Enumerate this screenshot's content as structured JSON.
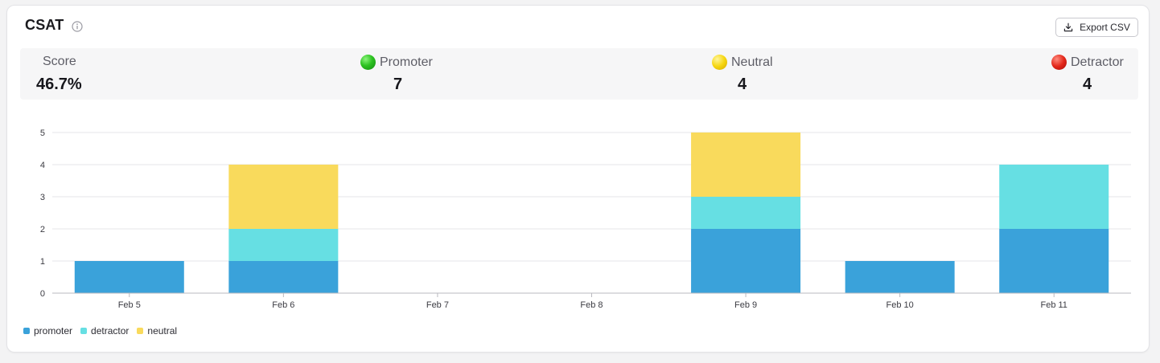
{
  "header": {
    "title": "CSAT",
    "export_label": "Export CSV"
  },
  "stats": {
    "score": {
      "label": "Score",
      "value": "46.7%"
    },
    "promoter": {
      "label": "Promoter",
      "value": "7"
    },
    "neutral": {
      "label": "Neutral",
      "value": "4"
    },
    "detractor": {
      "label": "Detractor",
      "value": "4"
    }
  },
  "colors": {
    "promoter": "#3aa2da",
    "detractor": "#66dfe3",
    "neutral": "#f9da5c",
    "grid": "#e6e6e9",
    "axis": "#b9b9bf"
  },
  "chart_data": {
    "type": "bar",
    "stacked": true,
    "categories": [
      "Feb 5",
      "Feb 6",
      "Feb 7",
      "Feb 8",
      "Feb 9",
      "Feb 10",
      "Feb 11"
    ],
    "series": [
      {
        "name": "promoter",
        "values": [
          1,
          1,
          0,
          0,
          2,
          1,
          2
        ]
      },
      {
        "name": "detractor",
        "values": [
          0,
          1,
          0,
          0,
          1,
          0,
          2
        ]
      },
      {
        "name": "neutral",
        "values": [
          0,
          2,
          0,
          0,
          2,
          0,
          0
        ]
      }
    ],
    "yticks": [
      0,
      1,
      2,
      3,
      4,
      5
    ],
    "ylim": [
      0,
      5
    ],
    "grid": true,
    "legend_position": "bottom-left"
  }
}
